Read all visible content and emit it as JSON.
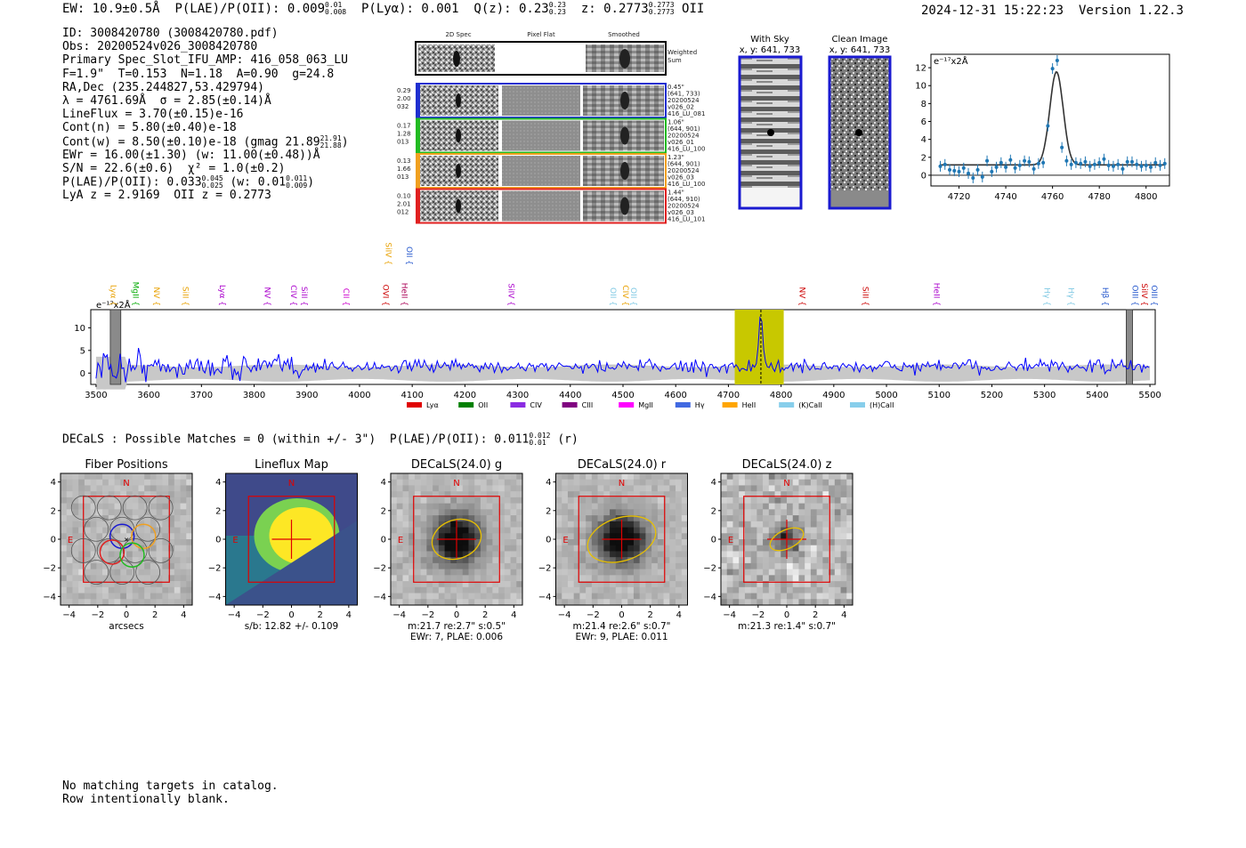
{
  "header": {
    "ew_label": "EW: 10.9±0.5Å",
    "plae_label": "P(LAE)/P(OII): 0.009",
    "plae_hi": "0.01",
    "plae_lo": "0.008",
    "plya_label": "P(Lyα): 0.001",
    "qz_label": "Q(z): 0.23",
    "qz_hi": "0.23",
    "qz_lo": "0.23",
    "z_label": "z: 0.2773",
    "z_hi": "0.2773",
    "z_lo": "0.2773",
    "z_line": "OII",
    "timestamp": "2024-12-31 15:22:23",
    "version": "Version 1.22.3"
  },
  "info": {
    "id": "ID: 3008420780 (3008420780.pdf)",
    "obs": "Obs: 20200524v026_3008420780",
    "primary": "Primary Spec_Slot_IFU_AMP: 416_058_063_LU",
    "fiber": "F=1.9\"  T=0.153  N=1.18  A=0.90  g=24.8",
    "radec": "RA,Dec (235.244827,53.429794)",
    "lambda": "λ = 4761.69Å  σ = 2.85(±0.14)Å",
    "lineflux": "LineFlux = 3.70(±0.15)e-16",
    "contn": "Cont(n) = 5.80(±0.40)e-18",
    "contw": "Cont(w) = 8.50(±0.10)e-18 (gmag 21.89",
    "gmag_hi": "21.91",
    "gmag_lo": "21.88",
    "ewr": "EWr = 16.00(±1.30) (w: 11.00(±0.48))Å",
    "sn": "S/N = 22.6(±0.6)  χ² = 1.0(±0.2)",
    "plae": "P(LAE)/P(OII): 0.033",
    "plae_hi": "0.045",
    "plae_lo": "0.025",
    "plae_w": "(w: 0.01",
    "plae_w_hi": "0.011",
    "plae_w_lo": "0.009",
    "plae_w_close": ")",
    "lya_z": "LyA z = 2.9169  OII z = 0.2773"
  },
  "cutouts": {
    "col_headers": [
      "2D Spec",
      "Pixel Flat",
      "Smoothed"
    ],
    "weighted_label": [
      "Weighted",
      "Sum"
    ],
    "rows": [
      {
        "left": [
          "0.29",
          "2.00",
          "032"
        ],
        "right": [
          "0.45\"",
          "(641, 733)",
          "20200524",
          "v026_02",
          "416_LU_081"
        ],
        "color": "#1f2fd0"
      },
      {
        "left": [
          "0.17",
          "1.28",
          "013"
        ],
        "right": [
          "1.06\"",
          "(644, 901)",
          "20200524",
          "v026_01",
          "416_LU_100"
        ],
        "color": "#22bb22"
      },
      {
        "left": [
          "0.13",
          "1.66",
          "013"
        ],
        "right": [
          "1.23\"",
          "(644, 901)",
          "20200524",
          "v026_03",
          "416_LU_100"
        ],
        "color": "#f0a020"
      },
      {
        "left": [
          "0.10",
          "2.01",
          "012"
        ],
        "right": [
          "1.44\"",
          "(644, 910)",
          "20200524",
          "v026_03",
          "416_LU_101"
        ],
        "color": "#e02020"
      }
    ],
    "with_sky": {
      "title": "With Sky",
      "coords": "x, y: 641, 733"
    },
    "clean": {
      "title": "Clean Image",
      "coords": "x, y: 641, 733"
    }
  },
  "colors": {
    "blue": "#0000ff",
    "fit": "#333333",
    "errbar": "#1f77b4",
    "band": "#c8c800",
    "red": "#e00000",
    "yellow": "#e8c000"
  },
  "chart_data": [
    {
      "type": "scatter",
      "name": "line-fit",
      "title": "",
      "ylabel": "e$^{-17}$x2Å",
      "ylabel_text": "e⁻¹⁷x2Å",
      "xlim": [
        4708,
        4810
      ],
      "ylim": [
        -1.2,
        13.5
      ],
      "xticks": [
        4720,
        4740,
        4760,
        4780,
        4800
      ],
      "yticks": [
        0,
        2,
        4,
        6,
        8,
        10,
        12
      ],
      "x": [
        4712,
        4716,
        4720,
        4724,
        4728,
        4732,
        4736,
        4740,
        4744,
        4748,
        4752,
        4756,
        4760,
        4764,
        4768,
        4772,
        4776,
        4780,
        4784,
        4788,
        4792,
        4796,
        4800,
        4804,
        4808,
        4714,
        4718,
        4722,
        4726,
        4730,
        4734,
        4738,
        4742,
        4746,
        4750,
        4754,
        4758,
        4762,
        4766,
        4770,
        4774,
        4778,
        4782,
        4786,
        4790,
        4794,
        4798,
        4802,
        4806
      ],
      "y": [
        1.0,
        0.6,
        0.4,
        0.2,
        0.6,
        1.6,
        0.9,
        0.9,
        0.8,
        1.6,
        0.7,
        1.4,
        11.9,
        3.1,
        1.2,
        1.3,
        1.0,
        1.4,
        1.1,
        1.2,
        1.5,
        1.2,
        1.1,
        1.4,
        1.3,
        1.2,
        0.5,
        0.8,
        -0.3,
        -0.2,
        0.4,
        1.4,
        1.7,
        1.1,
        1.5,
        1.3,
        5.5,
        12.8,
        1.6,
        1.4,
        1.5,
        1.2,
        1.8,
        1.0,
        0.7,
        1.5,
        1.0,
        0.9,
        1.1
      ],
      "fit_center": 4761.69,
      "fit_sigma": 2.85,
      "fit_amp": 10.4,
      "fit_base": 1.15
    },
    {
      "type": "line",
      "name": "full-spectrum",
      "ylabel_text": "e⁻¹⁷x2Å",
      "xlim": [
        3490,
        5510
      ],
      "ylim": [
        -2.5,
        14
      ],
      "xticks": [
        3500,
        3600,
        3700,
        3800,
        3900,
        4000,
        4100,
        4200,
        4300,
        4400,
        4500,
        4600,
        4700,
        4800,
        4900,
        5000,
        5100,
        5200,
        5300,
        5400,
        5500
      ],
      "yticks": [
        0,
        5,
        10
      ],
      "highlight_band": [
        4712,
        4805
      ],
      "peak_wave": 4761.69,
      "peak_value": 11.5,
      "masked_regions": [
        [
          3527,
          3547
        ],
        [
          5455,
          5467
        ]
      ],
      "line_labels": [
        {
          "name": "Lyα",
          "wave": 3528,
          "color": "#e8a000",
          "level": 0
        },
        {
          "name": "MgII",
          "wave": 3570,
          "color": "#00aa00",
          "level": 0
        },
        {
          "name": "NV",
          "wave": 3610,
          "color": "#e8a000",
          "level": 0
        },
        {
          "name": "SiII",
          "wave": 3665,
          "color": "#e8a000",
          "level": 0
        },
        {
          "name": "Lyα",
          "wave": 3735,
          "color": "#aa00cc",
          "level": 0
        },
        {
          "name": "NV",
          "wave": 3820,
          "color": "#aa00cc",
          "level": 0
        },
        {
          "name": "CIV",
          "wave": 3870,
          "color": "#aa00cc",
          "level": 0
        },
        {
          "name": "SiII",
          "wave": 3890,
          "color": "#aa00cc",
          "level": 0
        },
        {
          "name": "CII",
          "wave": 3970,
          "color": "#cc00cc",
          "level": 0
        },
        {
          "name": "OVI",
          "wave": 4045,
          "color": "#cc0000",
          "level": 0
        },
        {
          "name": "HeII",
          "wave": 4080,
          "color": "#aa0055",
          "level": 0
        },
        {
          "name": "SiIV",
          "wave": 4050,
          "color": "#e8a000",
          "level": 1
        },
        {
          "name": "OII",
          "wave": 4090,
          "color": "#2255cc",
          "level": 1
        },
        {
          "name": "SiIV",
          "wave": 4283,
          "color": "#aa00cc",
          "level": 0
        },
        {
          "name": "OII",
          "wave": 4476,
          "color": "#7ec8e3",
          "level": 0
        },
        {
          "name": "CIV",
          "wave": 4500,
          "color": "#e8a000",
          "level": 0
        },
        {
          "name": "OII",
          "wave": 4515,
          "color": "#7ec8e3",
          "level": 0
        },
        {
          "name": "NV",
          "wave": 4835,
          "color": "#cc0000",
          "level": 0
        },
        {
          "name": "SiII",
          "wave": 4955,
          "color": "#cc0000",
          "level": 0
        },
        {
          "name": "HeII",
          "wave": 5090,
          "color": "#aa00cc",
          "level": 0
        },
        {
          "name": "Hγ",
          "wave": 5300,
          "color": "#7ec8e3",
          "level": 0
        },
        {
          "name": "Hγ",
          "wave": 5345,
          "color": "#7ec8e3",
          "level": 0
        },
        {
          "name": "Hβ",
          "wave": 5410,
          "color": "#2255cc",
          "level": 0
        },
        {
          "name": "OIII",
          "wave": 5467,
          "color": "#2255cc",
          "level": 0
        },
        {
          "name": "SiIV",
          "wave": 5485,
          "color": "#cc0000",
          "level": 0
        },
        {
          "name": "OIII",
          "wave": 5503,
          "color": "#2255cc",
          "level": 0
        }
      ],
      "legend": [
        {
          "name": "Lyα",
          "color": "#e00000"
        },
        {
          "name": "OII",
          "color": "#008000"
        },
        {
          "name": "CIV",
          "color": "#8a2be2"
        },
        {
          "name": "CIII",
          "color": "#800080"
        },
        {
          "name": "MgII",
          "color": "#ff00ff"
        },
        {
          "name": "Hγ",
          "color": "#4169e1"
        },
        {
          "name": "HeII",
          "color": "#ffa500"
        },
        {
          "name": "(K)CaII",
          "color": "#87ceeb"
        },
        {
          "name": "(H)CaII",
          "color": "#87ceeb"
        }
      ]
    },
    {
      "type": "heatmap",
      "name": "imaging-panels",
      "panels": [
        {
          "title": "Fiber Positions",
          "caption": [
            "arcsecs"
          ],
          "kind": "fiber"
        },
        {
          "title": "Lineflux Map",
          "caption": [
            "s/b: 12.82 +/- 0.109"
          ],
          "kind": "lineflux"
        },
        {
          "title": "DECaLS(24.0) g",
          "caption": [
            "m:21.7  re:2.7\"  s:0.5\"",
            "EWr: 7, PLAE: 0.006"
          ],
          "kind": "g",
          "ellipse": [
            1.75,
            1.35,
            -20
          ]
        },
        {
          "title": "DECaLS(24.0) r",
          "caption": [
            "m:21.4  re:2.6\"  s:0.7\"",
            "EWr: 9, PLAE: 0.011"
          ],
          "kind": "r",
          "ellipse": [
            2.45,
            1.5,
            -18
          ]
        },
        {
          "title": "DECaLS(24.0) z",
          "caption": [
            "m:21.3  re:1.4\"  s:0.7\""
          ],
          "kind": "z",
          "ellipse": [
            1.25,
            0.65,
            -25
          ]
        }
      ],
      "axis_ticks": [
        -4,
        -2,
        0,
        2,
        4
      ],
      "north_label": "N",
      "east_label": "E"
    }
  ],
  "decals": {
    "text": "DECaLS : Possible Matches = 0 (within +/- 3\")  P(LAE)/P(OII): 0.011",
    "hi": "0.012",
    "lo": "0.01",
    "band": "(r)"
  },
  "footer": {
    "line1": "No matching targets in catalog.",
    "line2": "Row intentionally blank."
  }
}
